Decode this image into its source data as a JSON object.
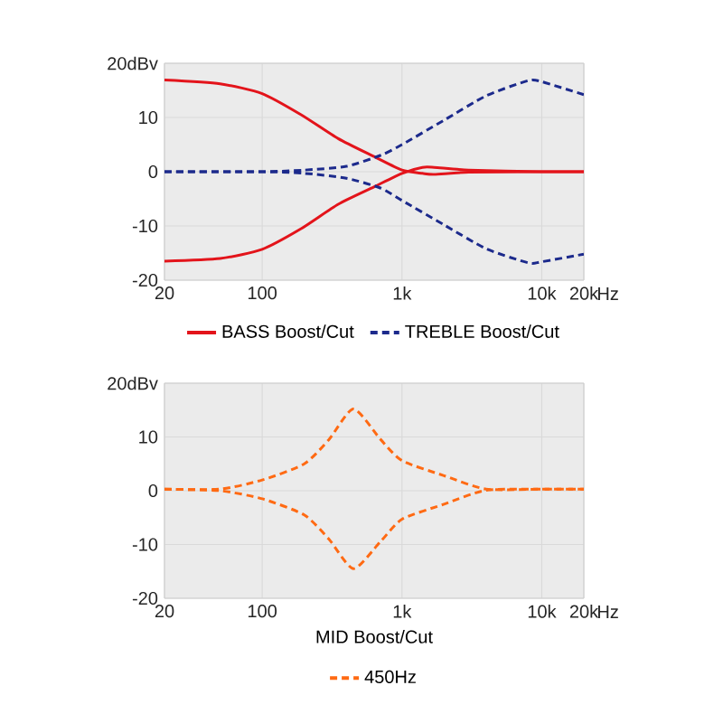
{
  "chart_data": [
    {
      "type": "line",
      "x": [
        20,
        50,
        100,
        190,
        350,
        630,
        1000,
        1400,
        1700,
        3000,
        10000,
        20000
      ],
      "xlim": [
        20,
        20000
      ],
      "ylim": [
        -20,
        20
      ],
      "log": "x",
      "grid": true,
      "legend": "bottom",
      "xlabel": "Hz",
      "xticks": [
        20,
        {
          "value": 100,
          "label": "100"
        },
        {
          "value": 1000,
          "label": "1k"
        },
        {
          "value": 10000,
          "label": "10k"
        },
        {
          "value": 20000,
          "label": "20k"
        }
      ],
      "yticks": [
        {
          "value": 20,
          "label": "20dBv"
        },
        10,
        0,
        -10,
        -20
      ],
      "series": [
        {
          "name": "BASS Boost/Cut",
          "color": "#e3141b",
          "line_style": "solid",
          "values": [
            16.9,
            16.2,
            14.4,
            10.5,
            6.1,
            2.8,
            0.3,
            -0.3,
            -0.5,
            -0.1,
            0,
            0
          ]
        },
        {
          "color": "#e3141b",
          "line_style": "solid",
          "values": [
            -16.5,
            -16,
            -14.3,
            -10.5,
            -6,
            -2.8,
            -0.3,
            0.8,
            0.8,
            0.3,
            0,
            0
          ]
        },
        {
          "name": "TREBLE Boost/Cut",
          "color": "#1c2a8c",
          "line_style": "dashed",
          "x": [
            20,
            100,
            200,
            400,
            700,
            1000,
            2000,
            4000,
            8000,
            10000,
            20000
          ],
          "values": [
            0,
            0,
            0.3,
            1,
            3,
            5,
            9.5,
            14,
            16.8,
            16.6,
            14.2
          ]
        },
        {
          "color": "#1c2a8c",
          "line_style": "dashed",
          "x": [
            20,
            100,
            200,
            400,
            700,
            1000,
            2000,
            4000,
            8000,
            10000,
            20000
          ],
          "values": [
            0,
            0,
            -0.3,
            -1.2,
            -3,
            -5.3,
            -9.8,
            -14.2,
            -16.8,
            -16.6,
            -15.2
          ]
        }
      ]
    },
    {
      "type": "line",
      "x": [
        20,
        50,
        100,
        200,
        300,
        450,
        700,
        1000,
        2000,
        4000,
        10000,
        20000
      ],
      "xlim": [
        20,
        20000
      ],
      "ylim": [
        -20,
        20
      ],
      "log": "x",
      "grid": true,
      "legend": "bottom",
      "legend_title": "MID Boost/Cut",
      "xlabel": "Hz",
      "xticks": [
        20,
        {
          "value": 100,
          "label": "100"
        },
        {
          "value": 1000,
          "label": "1k"
        },
        {
          "value": 10000,
          "label": "10k"
        },
        {
          "value": 20000,
          "label": "20k"
        }
      ],
      "yticks": [
        {
          "value": 20,
          "label": "20dBv"
        },
        10,
        0,
        -10,
        -20
      ],
      "series": [
        {
          "name": "450Hz",
          "color": "#ff6a13",
          "line_style": "dashed",
          "values": [
            0.3,
            0.3,
            2,
            5,
            9.5,
            15.2,
            9.6,
            5.6,
            2.8,
            0.3,
            0.3,
            0.3
          ]
        },
        {
          "color": "#ff6a13",
          "line_style": "dashed",
          "values": [
            0.3,
            0,
            -1.5,
            -4.5,
            -9,
            -14.5,
            -9.5,
            -5.3,
            -2.5,
            0.1,
            0.3,
            0.3
          ]
        }
      ]
    }
  ]
}
